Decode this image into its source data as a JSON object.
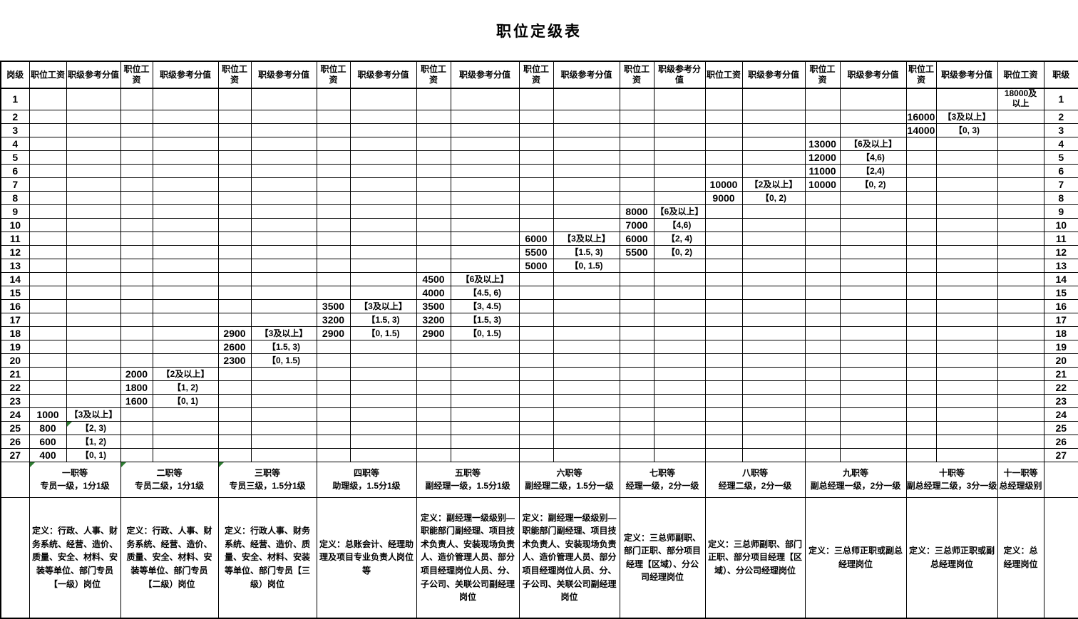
{
  "title": "职位定级表",
  "column_headers": {
    "post_level": "岗级",
    "salary": "职位工资",
    "score": "职级参考分值",
    "rank": "职级"
  },
  "colors": {
    "grid": "#000000",
    "comment_marker": "#2e7d32"
  },
  "groups": [
    {
      "id": 1,
      "grade": "一职等",
      "grade_note": "专员一级，1分1级",
      "definition": "定义：行政、人事、财务系统、经营、造价、质量、安全、材料、安装等单位、部门专员【一级）岗位"
    },
    {
      "id": 2,
      "grade": "二职等",
      "grade_note": "专员二级，1分1级",
      "definition": "定义：行政、人事、财务系统、经营、造价、质量、安全、材料、安装等单位、部门专员【二级）岗位"
    },
    {
      "id": 3,
      "grade": "三职等",
      "grade_note": "专员三级，1.5分1级",
      "definition": "定义：行政人事、财务系统、经营、造价、质量、安全、材料、安装等单位、部门专员【三级）岗位"
    },
    {
      "id": 4,
      "grade": "四职等",
      "grade_note": "助理级，1.5分1级",
      "definition": "定义：总账会计、经理助理及项目专业负责人岗位等"
    },
    {
      "id": 5,
      "grade": "五职等",
      "grade_note": "副经理一级，1.5分1级",
      "definition": "定义：副经理一级级别—职能部门副经理、项目技术负责人、安装现场负责人、造价管理人员、部分项目经理岗位人员、分、子公司、关联公司副经理岗位"
    },
    {
      "id": 6,
      "grade": "六职等",
      "grade_note": "副经理二级，1.5分一级",
      "definition": "定义：副经理一级级别—职能部门副经理、项目技术负责人、安装现场负责人、造价管理人员、部分项目经理岗位人员、分、子公司、关联公司副经理岗位"
    },
    {
      "id": 7,
      "grade": "七职等",
      "grade_note": "经理一级，2分一级",
      "definition": "定义：三总师副职、部门正职、部分项目经理【区域）、分公司经理岗位"
    },
    {
      "id": 8,
      "grade": "八职等",
      "grade_note": "经理二级，2分一级",
      "definition": "定义：三总师副职、部门正职、部分项目经理【区域）、分公司经理岗位"
    },
    {
      "id": 9,
      "grade": "九职等",
      "grade_note": "副总经理一级，2分一级",
      "definition": "定义：三总师正职或副总经理岗位"
    },
    {
      "id": 10,
      "grade": "十职等",
      "grade_note": "副总经理二级，3分一级",
      "definition": "定义：三总师正职或副总经理岗位"
    },
    {
      "id": 11,
      "grade": "十一职等",
      "grade_note": "总经理级别",
      "definition": "定义：总经理岗位",
      "salary_only": true
    }
  ],
  "rows": [
    {
      "post_level": "1",
      "rank": "1",
      "values": {
        "11": [
          "18000及以上"
        ]
      }
    },
    {
      "post_level": "2",
      "rank": "2",
      "values": {
        "10": [
          "16000",
          "【3及以上】"
        ]
      }
    },
    {
      "post_level": "3",
      "rank": "3",
      "values": {
        "10": [
          "14000",
          "【0, 3)"
        ]
      }
    },
    {
      "post_level": "4",
      "rank": "4",
      "values": {
        "9": [
          "13000",
          "【6及以上】"
        ]
      }
    },
    {
      "post_level": "5",
      "rank": "5",
      "values": {
        "9": [
          "12000",
          "【4,6)"
        ]
      }
    },
    {
      "post_level": "6",
      "rank": "6",
      "values": {
        "9": [
          "11000",
          "【2,4)"
        ]
      }
    },
    {
      "post_level": "7",
      "rank": "7",
      "values": {
        "8": [
          "10000",
          "【2及以上】"
        ],
        "9": [
          "10000",
          "【0, 2)"
        ]
      }
    },
    {
      "post_level": "8",
      "rank": "8",
      "values": {
        "8": [
          "9000",
          "【0, 2)"
        ]
      }
    },
    {
      "post_level": "9",
      "rank": "9",
      "values": {
        "7": [
          "8000",
          "【6及以上】"
        ]
      }
    },
    {
      "post_level": "10",
      "rank": "10",
      "values": {
        "7": [
          "7000",
          "【4,6)"
        ]
      }
    },
    {
      "post_level": "11",
      "rank": "11",
      "values": {
        "6": [
          "6000",
          "【3及以上】"
        ],
        "7": [
          "6000",
          "【2, 4)"
        ]
      }
    },
    {
      "post_level": "12",
      "rank": "12",
      "values": {
        "6": [
          "5500",
          "【1.5, 3)"
        ],
        "7": [
          "5500",
          "【0, 2)"
        ]
      }
    },
    {
      "post_level": "13",
      "rank": "13",
      "values": {
        "6": [
          "5000",
          "【0, 1.5)"
        ]
      }
    },
    {
      "post_level": "14",
      "rank": "14",
      "values": {
        "5": [
          "4500",
          "【6及以上】"
        ]
      }
    },
    {
      "post_level": "15",
      "rank": "15",
      "values": {
        "5": [
          "4000",
          "【4.5, 6)"
        ]
      }
    },
    {
      "post_level": "16",
      "rank": "16",
      "values": {
        "4": [
          "3500",
          "【3及以上】"
        ],
        "5": [
          "3500",
          "【3, 4.5)"
        ]
      }
    },
    {
      "post_level": "17",
      "rank": "17",
      "values": {
        "4": [
          "3200",
          "【1.5, 3)"
        ],
        "5": [
          "3200",
          "【1.5, 3)"
        ]
      }
    },
    {
      "post_level": "18",
      "rank": "18",
      "values": {
        "3": [
          "2900",
          "【3及以上】"
        ],
        "4": [
          "2900",
          "【0, 1.5)"
        ],
        "5": [
          "2900",
          "【0, 1.5)"
        ]
      }
    },
    {
      "post_level": "19",
      "rank": "19",
      "values": {
        "3": [
          "2600",
          "【1.5, 3)"
        ]
      }
    },
    {
      "post_level": "20",
      "rank": "20",
      "values": {
        "3": [
          "2300",
          "【0, 1.5)"
        ]
      }
    },
    {
      "post_level": "21",
      "rank": "21",
      "values": {
        "2": [
          "2000",
          "【2及以上】"
        ]
      }
    },
    {
      "post_level": "22",
      "rank": "22",
      "values": {
        "2": [
          "1800",
          "【1, 2)"
        ]
      }
    },
    {
      "post_level": "23",
      "rank": "23",
      "values": {
        "2": [
          "1600",
          "【0, 1)"
        ]
      }
    },
    {
      "post_level": "24",
      "rank": "24",
      "values": {
        "1": [
          "1000",
          "【3及以上】"
        ]
      }
    },
    {
      "post_level": "25",
      "rank": "25",
      "values": {
        "1": [
          "800",
          "【2, 3)"
        ]
      }
    },
    {
      "post_level": "26",
      "rank": "26",
      "values": {
        "1": [
          "600",
          "【1, 2)"
        ]
      }
    },
    {
      "post_level": "27",
      "rank": "27",
      "values": {
        "1": [
          "400",
          "【0, 1)"
        ]
      }
    }
  ],
  "comment_markers": {
    "score_cells": [
      {
        "row": 25,
        "group": 1
      }
    ],
    "grade_cells": [
      1,
      2,
      3
    ]
  }
}
